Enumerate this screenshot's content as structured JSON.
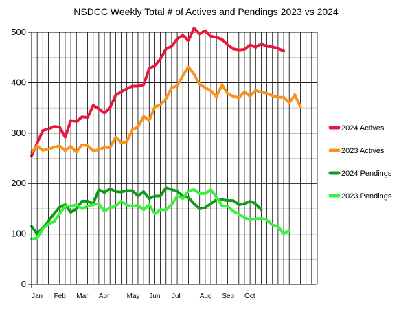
{
  "chart_data": {
    "type": "line",
    "title": "NSDCC Weekly Total # of Actives and Pendings 2023 vs 2024",
    "xlabel": "",
    "ylabel": "",
    "ylim": [
      0,
      500
    ],
    "yticks": [
      0,
      100,
      200,
      300,
      400,
      500
    ],
    "grid": true,
    "legend_position": "right",
    "weeks": 52,
    "month_labels": [
      {
        "label": "Jan",
        "week": 1
      },
      {
        "label": "Feb",
        "week": 5
      },
      {
        "label": "Mar",
        "week": 9
      },
      {
        "label": "Apr",
        "week": 13
      },
      {
        "label": "May",
        "week": 18
      },
      {
        "label": "Jun",
        "week": 22
      },
      {
        "label": "Jul",
        "week": 26
      },
      {
        "label": "Aug",
        "week": 31
      },
      {
        "label": "Sep",
        "week": 35
      },
      {
        "label": "Oct",
        "week": 39
      }
    ],
    "series": [
      {
        "name": "2024 Actives",
        "color": "#e8173c",
        "values": [
          255,
          280,
          305,
          308,
          313,
          312,
          292,
          325,
          323,
          332,
          331,
          355,
          348,
          340,
          350,
          375,
          382,
          388,
          393,
          393,
          396,
          428,
          434,
          447,
          467,
          472,
          487,
          494,
          484,
          508,
          497,
          503,
          492,
          490,
          486,
          475,
          467,
          465,
          466,
          475,
          470,
          477,
          472,
          471,
          468,
          463
        ]
      },
      {
        "name": "2023 Actives",
        "color": "#f7931e",
        "values": [
          262,
          275,
          266,
          268,
          272,
          275,
          265,
          274,
          262,
          277,
          275,
          265,
          267,
          272,
          271,
          292,
          281,
          283,
          307,
          312,
          333,
          325,
          352,
          356,
          368,
          390,
          394,
          414,
          431,
          417,
          397,
          390,
          384,
          372,
          396,
          378,
          373,
          370,
          382,
          373,
          385,
          381,
          379,
          374,
          371,
          371,
          360,
          376,
          352
        ]
      },
      {
        "name": "2024 Pendings",
        "color": "#129b1a",
        "values": [
          115,
          100,
          112,
          125,
          140,
          153,
          158,
          143,
          150,
          165,
          165,
          160,
          188,
          182,
          190,
          184,
          183,
          186,
          186,
          175,
          184,
          170,
          175,
          175,
          192,
          188,
          185,
          175,
          172,
          160,
          150,
          152,
          160,
          168,
          168,
          166,
          166,
          158,
          160,
          165,
          160,
          148
        ]
      },
      {
        "name": "2023 Pendings",
        "color": "#3df03d",
        "values": [
          90,
          92,
          110,
          120,
          124,
          140,
          155,
          155,
          158,
          150,
          155,
          158,
          160,
          145,
          152,
          155,
          165,
          157,
          155,
          157,
          148,
          158,
          140,
          148,
          148,
          158,
          175,
          170,
          185,
          188,
          180,
          180,
          188,
          173,
          156,
          155,
          145,
          140,
          132,
          128,
          130,
          131,
          128,
          118,
          115,
          100,
          107
        ]
      }
    ]
  }
}
